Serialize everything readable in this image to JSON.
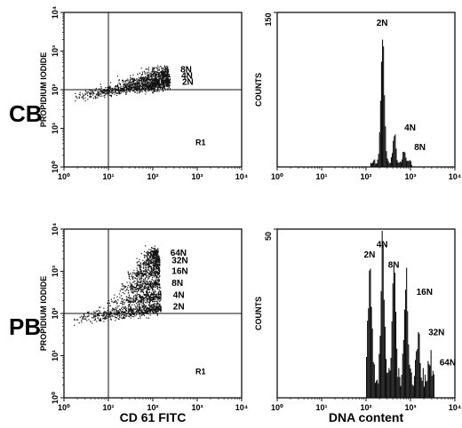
{
  "figure": {
    "row_labels": [
      "CB",
      "PB"
    ],
    "bottom_labels": {
      "left": "CD 61 FITC",
      "right": "DNA content"
    }
  },
  "chart_data": [
    {
      "id": "cb-dot",
      "panel": "CB",
      "type": "scatter",
      "ylabel": "PROPIDIUM IODIDE",
      "xscale": "log",
      "yscale": "log",
      "xlim": [
        1,
        10000
      ],
      "ylim": [
        1,
        10000
      ],
      "xticks": [
        "10⁰",
        "10¹",
        "10²",
        "10³",
        "10⁴"
      ],
      "yticks": [
        "10⁰",
        "10¹",
        "10²",
        "10³",
        "10⁴"
      ],
      "gate_label": "R1",
      "gate_x": 10,
      "gate_y": 100,
      "populations": [
        {
          "label": "8N",
          "x_range": [
            50,
            220
          ],
          "y_center": 330,
          "spread": 0.07,
          "count": 140,
          "slope": 0.16
        },
        {
          "label": "4N",
          "x_range": [
            15,
            230
          ],
          "y_center": 230,
          "spread": 0.07,
          "count": 380,
          "slope": 0.16
        },
        {
          "label": "2N",
          "x_range": [
            1.5,
            240
          ],
          "y_center": 155,
          "spread": 0.07,
          "count": 900,
          "slope": 0.16
        }
      ]
    },
    {
      "id": "cb-hist",
      "panel": "CB",
      "type": "bar",
      "ylabel": "COUNTS",
      "xscale": "log",
      "xlim": [
        1,
        10000
      ],
      "ylim": [
        0,
        150
      ],
      "xticks": [
        "10⁰",
        "10¹",
        "10²",
        "10³",
        "10⁴"
      ],
      "yticks": [
        "0",
        "150"
      ],
      "peaks": [
        {
          "label": "2N",
          "x": 230,
          "height": 132,
          "width": 0.04
        },
        {
          "label": "4N",
          "x": 420,
          "height": 30,
          "width": 0.035
        },
        {
          "label": "8N",
          "x": 700,
          "height": 11,
          "width": 0.035
        }
      ],
      "x_start": 125,
      "x_end": 1100,
      "baseline": 6
    },
    {
      "id": "pb-dot",
      "panel": "PB",
      "type": "scatter",
      "ylabel": "PROPIDIUM IODIDE",
      "xscale": "log",
      "yscale": "log",
      "xlim": [
        1,
        10000
      ],
      "ylim": [
        1,
        10000
      ],
      "xticks": [
        "10⁰",
        "10¹",
        "10²",
        "10³",
        "10⁴"
      ],
      "yticks": [
        "10⁰",
        "10¹",
        "10²",
        "10³",
        "10⁴"
      ],
      "gate_label": "R1",
      "gate_x": 10,
      "gate_y": 100,
      "populations": [
        {
          "label": "64N",
          "x_range": [
            60,
            130
          ],
          "y_center": 2700,
          "spread": 0.07,
          "count": 170,
          "slope": 0.15
        },
        {
          "label": "32N",
          "x_range": [
            40,
            140
          ],
          "y_center": 1800,
          "spread": 0.07,
          "count": 220,
          "slope": 0.15
        },
        {
          "label": "16N",
          "x_range": [
            25,
            140
          ],
          "y_center": 1000,
          "spread": 0.07,
          "count": 260,
          "slope": 0.15
        },
        {
          "label": "8N",
          "x_range": [
            15,
            140
          ],
          "y_center": 520,
          "spread": 0.07,
          "count": 300,
          "slope": 0.15
        },
        {
          "label": "4N",
          "x_range": [
            8,
            150
          ],
          "y_center": 270,
          "spread": 0.07,
          "count": 340,
          "slope": 0.15
        },
        {
          "label": "2N",
          "x_range": [
            1.5,
            150
          ],
          "y_center": 145,
          "spread": 0.07,
          "count": 620,
          "slope": 0.15
        }
      ]
    },
    {
      "id": "pb-hist",
      "panel": "PB",
      "type": "bar",
      "ylabel": "COUNTS",
      "xscale": "log",
      "xlim": [
        1,
        10000
      ],
      "ylim": [
        0,
        50
      ],
      "xticks": [
        "10⁰",
        "10¹",
        "10²",
        "10³",
        "10⁴"
      ],
      "yticks": [
        "0",
        "50"
      ],
      "peaks": [
        {
          "label": "2N",
          "x": 120,
          "height": 40,
          "width": 0.04
        },
        {
          "label": "4N",
          "x": 230,
          "height": 43,
          "width": 0.04
        },
        {
          "label": "8N",
          "x": 420,
          "height": 37,
          "width": 0.04
        },
        {
          "label": "16N",
          "x": 780,
          "height": 29,
          "width": 0.04
        },
        {
          "label": "32N",
          "x": 1450,
          "height": 17,
          "width": 0.04
        },
        {
          "label": "64N",
          "x": 2600,
          "height": 8,
          "width": 0.04
        }
      ],
      "x_start": 100,
      "x_end": 3300,
      "baseline": 7
    }
  ]
}
